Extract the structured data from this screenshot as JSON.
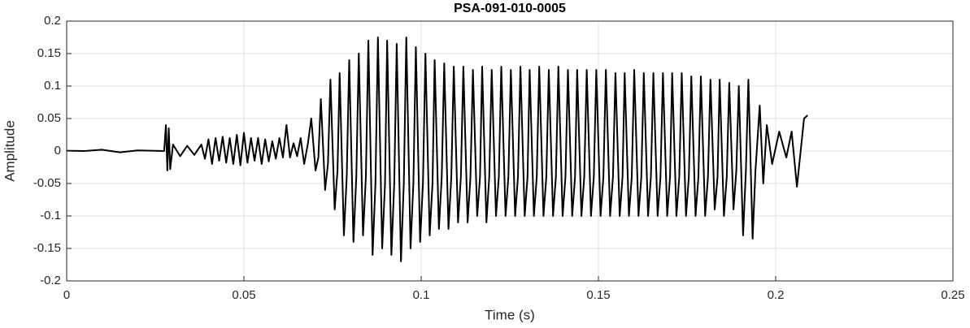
{
  "chart_data": {
    "type": "line",
    "title": "PSA-091-010-0005",
    "xlabel": "Time (s)",
    "ylabel": "Amplitude",
    "xlim": [
      0,
      0.25
    ],
    "xticks": [
      0,
      0.05,
      0.1,
      0.15,
      0.2,
      0.25
    ],
    "ylim": [
      -0.2,
      0.2
    ],
    "yticks": [
      -0.2,
      -0.15,
      -0.1,
      -0.05,
      0,
      0.05,
      0.1,
      0.15,
      0.2
    ],
    "grid": true,
    "series": [
      {
        "color": "#000000",
        "x": [
          0,
          0.005,
          0.01,
          0.015,
          0.02,
          0.0275,
          0.028,
          0.0284,
          0.0288,
          0.0292,
          0.03,
          0.032,
          0.034,
          0.036,
          0.038,
          0.039,
          0.04,
          0.041,
          0.042,
          0.043,
          0.044,
          0.045,
          0.046,
          0.047,
          0.048,
          0.049,
          0.05,
          0.051,
          0.052,
          0.053,
          0.054,
          0.055,
          0.056,
          0.057,
          0.058,
          0.059,
          0.06,
          0.061,
          0.062,
          0.063,
          0.064,
          0.065,
          0.066,
          0.067,
          0.068,
          0.069,
          0.0702,
          0.071,
          0.0717,
          0.0729,
          0.0737,
          0.0744,
          0.0756,
          0.0764,
          0.077,
          0.0782,
          0.079,
          0.0797,
          0.0809,
          0.0817,
          0.0824,
          0.0836,
          0.0844,
          0.0851,
          0.0863,
          0.0871,
          0.0878,
          0.089,
          0.0898,
          0.0904,
          0.0916,
          0.0924,
          0.0931,
          0.0943,
          0.0951,
          0.0958,
          0.097,
          0.0978,
          0.0985,
          0.0997,
          0.1005,
          0.1012,
          0.1024,
          0.1032,
          0.1038,
          0.105,
          0.1058,
          0.1065,
          0.1077,
          0.1085,
          0.1092,
          0.1104,
          0.1112,
          0.1119,
          0.1131,
          0.1139,
          0.1146,
          0.1158,
          0.1166,
          0.1172,
          0.1184,
          0.1192,
          0.1199,
          0.1211,
          0.1219,
          0.1226,
          0.1238,
          0.1246,
          0.1253,
          0.1265,
          0.1273,
          0.128,
          0.1292,
          0.13,
          0.1306,
          0.1318,
          0.1326,
          0.1333,
          0.1345,
          0.1353,
          0.136,
          0.1372,
          0.138,
          0.1387,
          0.1399,
          0.1407,
          0.1414,
          0.1426,
          0.1434,
          0.144,
          0.1452,
          0.146,
          0.1467,
          0.1479,
          0.1487,
          0.1494,
          0.1506,
          0.1514,
          0.1521,
          0.1533,
          0.1541,
          0.1548,
          0.156,
          0.1568,
          0.1574,
          0.1586,
          0.1594,
          0.1601,
          0.1613,
          0.1621,
          0.1628,
          0.164,
          0.1648,
          0.1655,
          0.1667,
          0.1675,
          0.1682,
          0.1694,
          0.1702,
          0.1708,
          0.172,
          0.1728,
          0.1735,
          0.1747,
          0.1755,
          0.1762,
          0.1774,
          0.1782,
          0.1789,
          0.1801,
          0.1809,
          0.1816,
          0.1828,
          0.1836,
          0.1842,
          0.1854,
          0.1862,
          0.1869,
          0.1881,
          0.1889,
          0.1896,
          0.1908,
          0.1916,
          0.1923,
          0.1935,
          0.1943,
          0.1955,
          0.1965,
          0.1975,
          0.199,
          0.201,
          0.203,
          0.2045,
          0.206,
          0.208,
          0.209
        ],
        "values": [
          0.0005,
          0,
          0.002,
          -0.002,
          0.001,
          0,
          0.04,
          -0.03,
          0.035,
          -0.028,
          0.01,
          -0.008,
          0.008,
          -0.006,
          0.01,
          -0.012,
          0.018,
          -0.02,
          0.02,
          -0.015,
          0.022,
          -0.018,
          0.02,
          -0.02,
          0.025,
          -0.022,
          0.028,
          -0.018,
          0.02,
          -0.015,
          0.02,
          -0.02,
          0.018,
          -0.016,
          0.015,
          -0.012,
          0.02,
          -0.01,
          0.04,
          -0.01,
          0.012,
          -0.008,
          0.02,
          -0.02,
          0.01,
          0.05,
          -0.03,
          -0.01,
          0.08,
          -0.06,
          -0.02,
          0.11,
          -0.09,
          -0.03,
          0.12,
          -0.13,
          -0.04,
          0.14,
          -0.14,
          -0.04,
          0.15,
          -0.13,
          -0.04,
          0.17,
          -0.16,
          -0.05,
          0.175,
          -0.15,
          -0.05,
          0.17,
          -0.16,
          -0.05,
          0.165,
          -0.17,
          -0.05,
          0.175,
          -0.15,
          -0.05,
          0.16,
          -0.14,
          -0.05,
          0.15,
          -0.13,
          -0.05,
          0.14,
          -0.12,
          -0.04,
          0.135,
          -0.12,
          -0.04,
          0.13,
          -0.11,
          -0.04,
          0.13,
          -0.11,
          -0.04,
          0.125,
          -0.1,
          -0.04,
          0.13,
          -0.11,
          -0.04,
          0.125,
          -0.1,
          -0.04,
          0.13,
          -0.1,
          -0.04,
          0.125,
          -0.1,
          -0.04,
          0.13,
          -0.1,
          -0.04,
          0.125,
          -0.1,
          -0.04,
          0.13,
          -0.1,
          -0.04,
          0.125,
          -0.1,
          -0.04,
          0.13,
          -0.1,
          -0.04,
          0.125,
          -0.1,
          -0.04,
          0.125,
          -0.1,
          -0.04,
          0.125,
          -0.1,
          -0.04,
          0.125,
          -0.1,
          -0.04,
          0.125,
          -0.1,
          -0.04,
          0.12,
          -0.1,
          -0.04,
          0.12,
          -0.1,
          -0.04,
          0.125,
          -0.1,
          -0.04,
          0.12,
          -0.1,
          -0.04,
          0.12,
          -0.1,
          -0.04,
          0.12,
          -0.1,
          -0.04,
          0.12,
          -0.1,
          -0.04,
          0.12,
          -0.1,
          -0.04,
          0.115,
          -0.1,
          -0.04,
          0.115,
          -0.1,
          -0.04,
          0.11,
          -0.09,
          -0.04,
          0.11,
          -0.1,
          -0.04,
          0.105,
          -0.09,
          -0.03,
          0.1,
          -0.13,
          -0.03,
          0.11,
          -0.135,
          -0.03,
          0.07,
          -0.05,
          0.04,
          -0.02,
          0.03,
          -0.01,
          0.03,
          -0.055,
          0.05,
          0.055
        ]
      }
    ]
  }
}
